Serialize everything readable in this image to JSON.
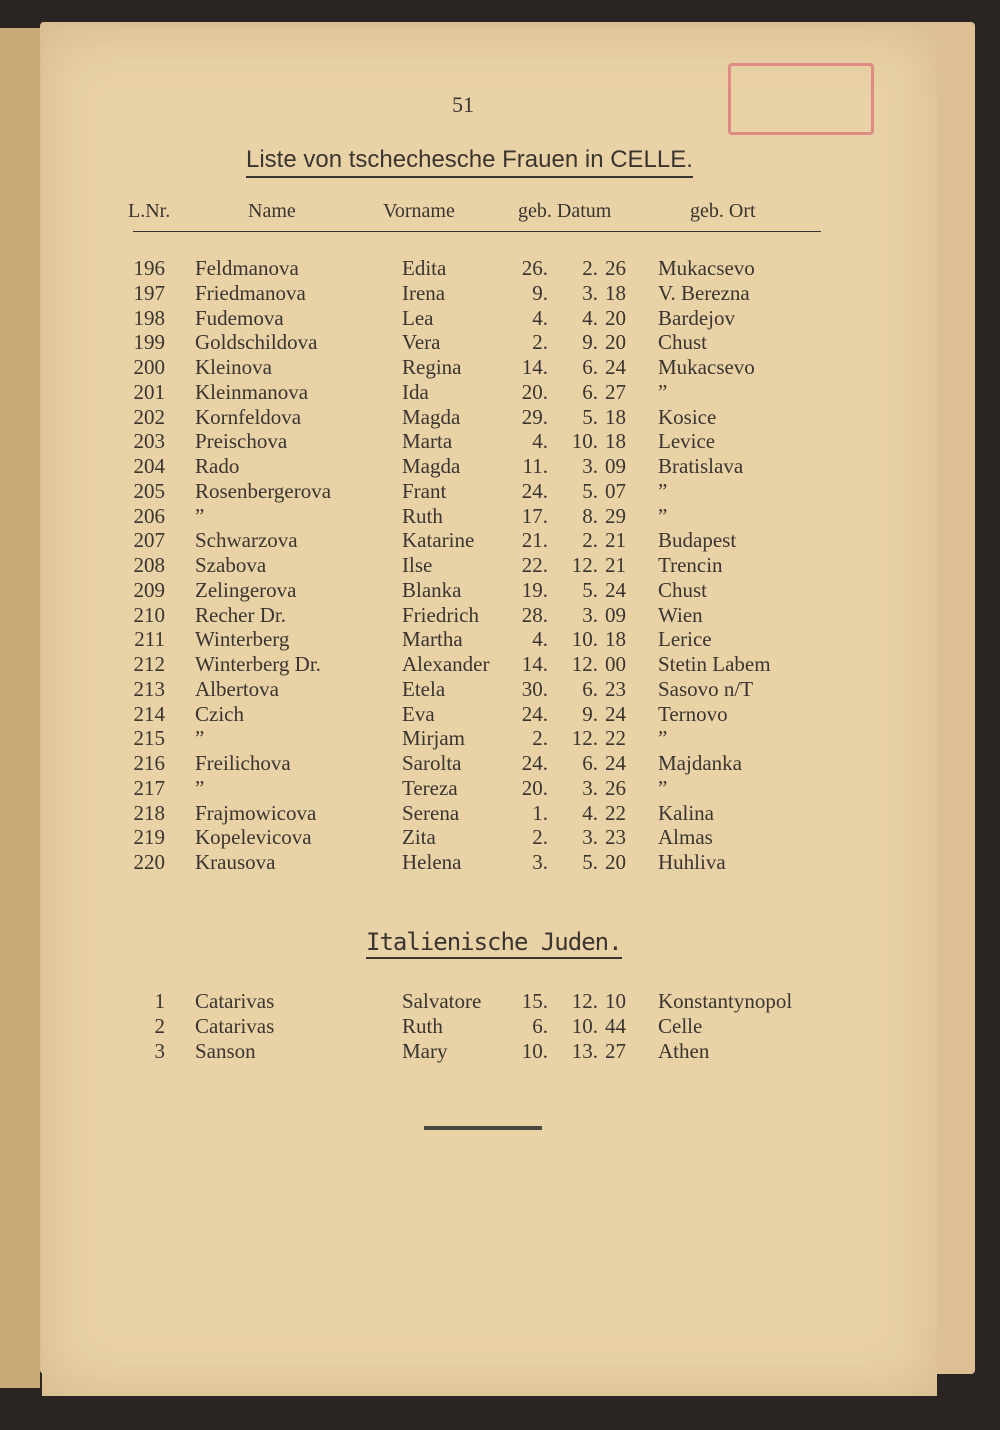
{
  "page_number": "51",
  "title": "Liste von tschechesche Frauen in CELLE.",
  "headers": {
    "nr": "L.Nr.",
    "name": "Name",
    "vorname": "Vorname",
    "datum": "geb. Datum",
    "ort": "geb. Ort"
  },
  "rows": [
    {
      "nr": "196",
      "name": "Feldmanova",
      "vorname": "Edita",
      "d": "26.",
      "m": "2.",
      "y": "26",
      "ort": "Mukacsevo"
    },
    {
      "nr": "197",
      "name": "Friedmanova",
      "vorname": "Irena",
      "d": "9.",
      "m": "3.",
      "y": "18",
      "ort": "V. Berezna"
    },
    {
      "nr": "198",
      "name": "Fudemova",
      "vorname": "Lea",
      "d": "4.",
      "m": "4.",
      "y": "20",
      "ort": "Bardejov"
    },
    {
      "nr": "199",
      "name": "Goldschildova",
      "vorname": "Vera",
      "d": "2.",
      "m": "9.",
      "y": "20",
      "ort": "Chust"
    },
    {
      "nr": "200",
      "name": "Kleinova",
      "vorname": "Regina",
      "d": "14.",
      "m": "6.",
      "y": "24",
      "ort": "Mukacsevo"
    },
    {
      "nr": "201",
      "name": "Kleinmanova",
      "vorname": "Ida",
      "d": "20.",
      "m": "6.",
      "y": "27",
      "ort": "”"
    },
    {
      "nr": "202",
      "name": "Kornfeldova",
      "vorname": "Magda",
      "d": "29.",
      "m": "5.",
      "y": "18",
      "ort": "Kosice"
    },
    {
      "nr": "203",
      "name": "Preischova",
      "vorname": "Marta",
      "d": "4.",
      "m": "10.",
      "y": "18",
      "ort": "Levice"
    },
    {
      "nr": "204",
      "name": "Rado",
      "vorname": "Magda",
      "d": "11.",
      "m": "3.",
      "y": "09",
      "ort": "Bratislava"
    },
    {
      "nr": "205",
      "name": "Rosenbergerova",
      "vorname": "Frant",
      "d": "24.",
      "m": "5.",
      "y": "07",
      "ort": "”"
    },
    {
      "nr": "206",
      "name": "”",
      "vorname": "Ruth",
      "d": "17.",
      "m": "8.",
      "y": "29",
      "ort": "”"
    },
    {
      "nr": "207",
      "name": "Schwarzova",
      "vorname": "Katarine",
      "d": "21.",
      "m": "2.",
      "y": "21",
      "ort": "Budapest"
    },
    {
      "nr": "208",
      "name": "Szabova",
      "vorname": "Ilse",
      "d": "22.",
      "m": "12.",
      "y": "21",
      "ort": "Trencin"
    },
    {
      "nr": "209",
      "name": "Zelingerova",
      "vorname": "Blanka",
      "d": "19.",
      "m": "5.",
      "y": "24",
      "ort": "Chust"
    },
    {
      "nr": "210",
      "name": "Recher Dr.",
      "vorname": "Friedrich",
      "d": "28.",
      "m": "3.",
      "y": "09",
      "ort": "Wien"
    },
    {
      "nr": "211",
      "name": "Winterberg",
      "vorname": "Martha",
      "d": "4.",
      "m": "10.",
      "y": "18",
      "ort": "Lerice"
    },
    {
      "nr": "212",
      "name": "Winterberg Dr.",
      "vorname": "Alexander",
      "d": "14.",
      "m": "12.",
      "y": "00",
      "ort": "Stetin Labem"
    },
    {
      "nr": "213",
      "name": "Albertova",
      "vorname": "Etela",
      "d": "30.",
      "m": "6.",
      "y": "23",
      "ort": "Sasovo n/T"
    },
    {
      "nr": "214",
      "name": "Czich",
      "vorname": "Eva",
      "d": "24.",
      "m": "9.",
      "y": "24",
      "ort": "Ternovo"
    },
    {
      "nr": "215",
      "name": "”",
      "vorname": "Mirjam",
      "d": "2.",
      "m": "12.",
      "y": "22",
      "ort": "”"
    },
    {
      "nr": "216",
      "name": "Freilichova",
      "vorname": "Sarolta",
      "d": "24.",
      "m": "6.",
      "y": "24",
      "ort": "Majdanka"
    },
    {
      "nr": "217",
      "name": "”",
      "vorname": "Tereza",
      "d": "20.",
      "m": "3.",
      "y": "26",
      "ort": "”"
    },
    {
      "nr": "218",
      "name": "Frajmowicova",
      "vorname": "Serena",
      "d": "1.",
      "m": "4.",
      "y": "22",
      "ort": "Kalina"
    },
    {
      "nr": "219",
      "name": "Kopelevicova",
      "vorname": "Zita",
      "d": "2.",
      "m": "3.",
      "y": "23",
      "ort": "Almas"
    },
    {
      "nr": "220",
      "name": "Krausova",
      "vorname": "Helena",
      "d": "3.",
      "m": "5.",
      "y": "20",
      "ort": "Huhliva"
    }
  ],
  "subtitle": "Italienische Juden.",
  "rows2": [
    {
      "nr": "1",
      "name": "Catarivas",
      "vorname": "Salvatore",
      "d": "15.",
      "m": "12.",
      "y": "10",
      "ort": "Konstantynopol"
    },
    {
      "nr": "2",
      "name": "Catarivas",
      "vorname": "Ruth",
      "d": "6.",
      "m": "10.",
      "y": "44",
      "ort": "Celle"
    },
    {
      "nr": "3",
      "name": "Sanson",
      "vorname": "Mary",
      "d": "10.",
      "m": "13.",
      "y": "27",
      "ort": "Athen"
    }
  ],
  "colors": {
    "paper": "#e9d2a6",
    "ink": "#3a3530",
    "stamp": "#e08a86"
  }
}
